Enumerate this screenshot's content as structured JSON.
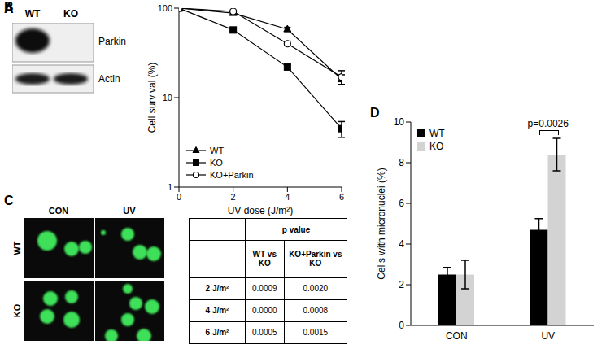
{
  "chart_data": [
    {
      "panel": "B",
      "type": "line",
      "x_label": "UV dose (J/m²)",
      "y_label": "Cell survival (%)",
      "x": [
        0,
        2,
        4,
        6
      ],
      "xlim": [
        0,
        6
      ],
      "xticks": [
        0,
        2,
        4,
        6
      ],
      "ylim": [
        1,
        100
      ],
      "yticks": [
        1,
        10,
        100
      ],
      "log": "y",
      "grid": false,
      "legend": "lower left",
      "series": [
        {
          "name": "WT",
          "color": "#000000",
          "marker": "triangle",
          "values": [
            100,
            88,
            58,
            16
          ],
          "errors": [
            0,
            2,
            3,
            2
          ]
        },
        {
          "name": "KO",
          "color": "#000000",
          "marker": "square",
          "values": [
            100,
            57,
            22,
            4.5
          ],
          "errors": [
            0,
            2,
            1.5,
            0.9
          ]
        },
        {
          "name": "KO+Parkin",
          "color": "#000000",
          "marker": "open_circle",
          "values": [
            100,
            92,
            40,
            17
          ],
          "errors": [
            0,
            3,
            2,
            3
          ]
        }
      ]
    },
    {
      "panel": "D",
      "type": "bar",
      "y_label": "Cells with micronuclei (%)",
      "categories": [
        "CON",
        "UV"
      ],
      "ylim": [
        0,
        10
      ],
      "yticks": [
        0,
        2,
        4,
        6,
        8,
        10
      ],
      "grid": false,
      "legend": "upper left",
      "series": [
        {
          "name": "WT",
          "color": "#000000",
          "values": [
            2.5,
            4.7
          ],
          "errors": [
            0.35,
            0.55
          ]
        },
        {
          "name": "KO",
          "color": "#d3d3d3",
          "values": [
            2.5,
            8.4
          ],
          "errors": [
            0.7,
            0.8
          ]
        }
      ],
      "annotations": [
        {
          "text": "p=0.0026",
          "category": "UV"
        }
      ]
    }
  ],
  "panel_A": {
    "panel": "A",
    "lanes": [
      "WT",
      "KO"
    ],
    "rows": [
      "Parkin",
      "Actin"
    ],
    "bands": {
      "Parkin": [
        true,
        false
      ],
      "Actin": [
        true,
        true
      ]
    }
  },
  "panel_C": {
    "panel": "C",
    "columns": [
      "CON",
      "UV"
    ],
    "rows": [
      "WT",
      "KO"
    ]
  },
  "table": {
    "header": "p value",
    "columns": [
      "WT vs KO",
      "KO+Parkin vs KO"
    ],
    "rows": [
      [
        "2 J/m²",
        "0.0009",
        "0.0020"
      ],
      [
        "4 J/m²",
        "0.0000",
        "0.0008"
      ],
      [
        "6 J/m²",
        "0.0005",
        "0.0015"
      ]
    ]
  }
}
